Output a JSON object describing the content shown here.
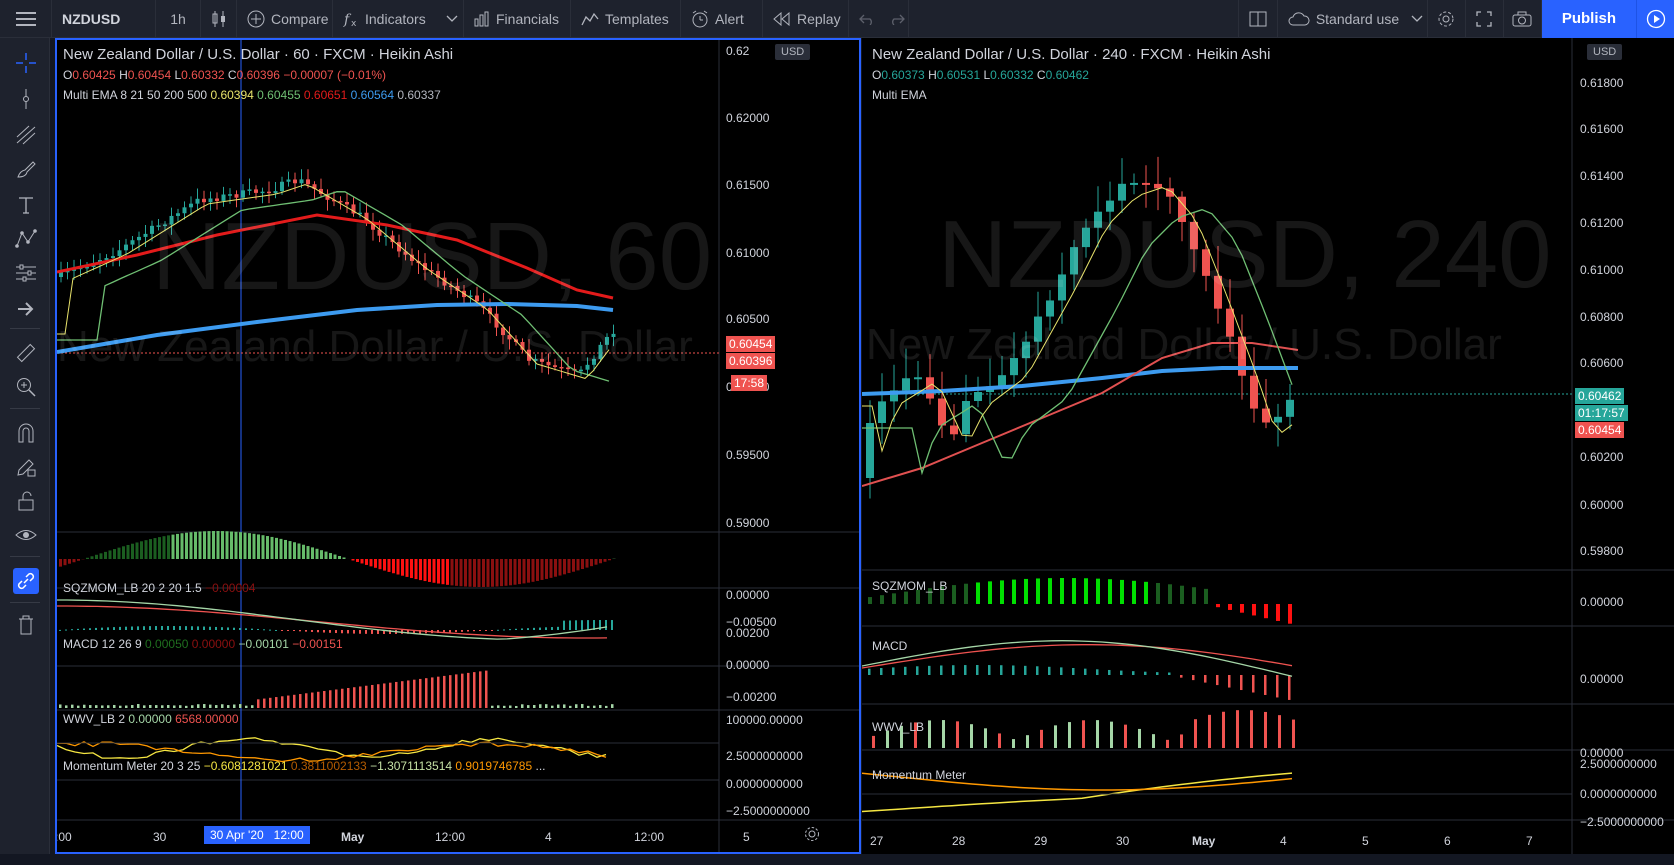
{
  "toolbar": {
    "symbol": "NZDUSD",
    "interval": "1h",
    "compare": "Compare",
    "indicators": "Indicators",
    "financials": "Financials",
    "templates": "Templates",
    "alert": "Alert",
    "replay": "Replay",
    "layout_name": "Standard use",
    "publish": "Publish"
  },
  "left_pane": {
    "title": "New Zealand Dollar / U.S. Dollar · 60 · FXCM · Heikin Ashi",
    "ohlc": {
      "o_label": "O",
      "o": "0.60425",
      "h_label": "H",
      "h": "0.60454",
      "l_label": "L",
      "l": "0.60332",
      "c_label": "C",
      "c": "0.60396",
      "change": "−0.00007 (−0.01%)"
    },
    "ema_label": "Multi EMA 8 21 50 200 500",
    "ema_values": [
      "0.60394",
      "0.60455",
      "0.60651",
      "0.60564",
      "0.60337"
    ],
    "watermark_big": "NZDUSD, 60",
    "watermark_small": "New Zealand Dollar / U.S. Dollar",
    "currency": "USD",
    "price_axis": [
      "0.62",
      "0.62000",
      "0.61500",
      "0.61000",
      "0.60500",
      "0.60000",
      "0.59500",
      "0.59000"
    ],
    "price_tags": {
      "high": "0.60454",
      "close": "0.60396",
      "countdown": "17:58"
    },
    "sqz": {
      "label": "SQZMOM_LB 20 2 20 1.5",
      "value": "−0.00004",
      "axis": [
        "0.00000",
        "−0.00500"
      ]
    },
    "macd": {
      "label": "MACD 12 26 9",
      "values": [
        "0.00050",
        "0.00000",
        "−0.00101",
        "−0.00151"
      ],
      "axis": [
        "0.00200",
        "0.00000",
        "−0.00200"
      ]
    },
    "wwv": {
      "label": "WWV_LB 2",
      "values": [
        "0.00000",
        "6568.00000"
      ],
      "axis": [
        "100000.00000"
      ]
    },
    "momentum": {
      "label": "Momentum Meter 20 3 25",
      "values": [
        "−0.6081281021",
        "0.3811002133",
        "−1.3071113514",
        "0.9019746785",
        "..."
      ],
      "axis": [
        "2.5000000000",
        "0.0000000000",
        "−2.5000000000"
      ]
    },
    "time_axis": [
      ":00",
      "30",
      "May",
      "12:00",
      "4",
      "12:00",
      "5"
    ],
    "crosshair_label": "30 Apr '20   12:00"
  },
  "right_pane": {
    "title": "New Zealand Dollar / U.S. Dollar · 240 · FXCM · Heikin Ashi",
    "ohlc": {
      "o_label": "O",
      "o": "0.60373",
      "h_label": "H",
      "h": "0.60531",
      "l_label": "L",
      "l": "0.60332",
      "c_label": "C",
      "c": "0.60462"
    },
    "ema_label": "Multi EMA",
    "watermark_big": "NZDUSD, 240",
    "watermark_small": "New Zealand Dollar / U.S. Dollar",
    "currency": "USD",
    "price_axis": [
      "0.61800",
      "0.61600",
      "0.61400",
      "0.61200",
      "0.61000",
      "0.60800",
      "0.60600",
      "0.60400",
      "0.60200",
      "0.60000",
      "0.59800"
    ],
    "price_tags": {
      "close": "0.60462",
      "countdown": "01:17:57",
      "high": "0.60454"
    },
    "sqz": {
      "label": "SQZMOM_LB",
      "axis": [
        "0.00000"
      ]
    },
    "macd": {
      "label": "MACD",
      "axis": [
        "0.00000"
      ]
    },
    "wwv": {
      "label": "WWV_LB",
      "axis": [
        "0.00000"
      ]
    },
    "momentum": {
      "label": "Momentum Meter",
      "axis": [
        "2.5000000000",
        "0.0000000000",
        "−2.5000000000"
      ]
    },
    "time_axis": [
      "27",
      "28",
      "29",
      "30",
      "May",
      "4",
      "5",
      "6",
      "7"
    ]
  },
  "colors": {
    "bull": "#26a69a",
    "bear": "#ef5350",
    "ema8": "#e8e36b",
    "ema21": "#6fbf73",
    "ema50": "#e31b1b",
    "ema200": "#3d9bf0",
    "accent": "#2962ff"
  }
}
